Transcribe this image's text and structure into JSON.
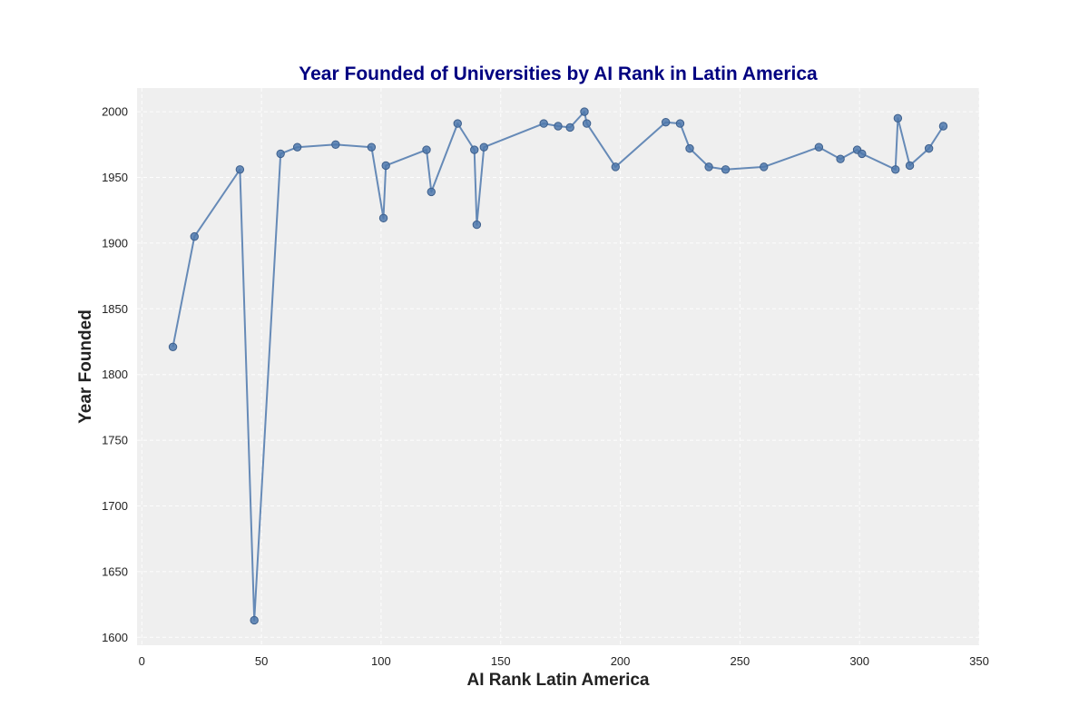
{
  "chart_data": {
    "type": "line",
    "title": "Year Founded of Universities by AI Rank in Latin America",
    "xlabel": "AI Rank Latin America",
    "ylabel": "Year Founded",
    "xlim": [
      -2,
      350
    ],
    "ylim": [
      1594,
      2018
    ],
    "xticks": [
      0,
      50,
      100,
      150,
      200,
      250,
      300,
      350
    ],
    "yticks": [
      1600,
      1650,
      1700,
      1750,
      1800,
      1850,
      1900,
      1950,
      2000
    ],
    "grid": true,
    "legend": "none",
    "colors": {
      "series": "#4d78ad",
      "title": "#000080",
      "plot_bg": "#efefef"
    },
    "series": [
      {
        "points": [
          [
            13,
            1821
          ],
          [
            22,
            1905
          ],
          [
            41,
            1956
          ],
          [
            47,
            1613
          ],
          [
            58,
            1968
          ],
          [
            65,
            1973
          ],
          [
            81,
            1975
          ],
          [
            96,
            1973
          ],
          [
            101,
            1919
          ],
          [
            102,
            1959
          ],
          [
            119,
            1971
          ],
          [
            121,
            1939
          ],
          [
            132,
            1991
          ],
          [
            139,
            1971
          ],
          [
            140,
            1914
          ],
          [
            143,
            1973
          ],
          [
            168,
            1991
          ],
          [
            174,
            1989
          ],
          [
            179,
            1988
          ],
          [
            185,
            2000
          ],
          [
            186,
            1991
          ],
          [
            198,
            1958
          ],
          [
            219,
            1992
          ],
          [
            225,
            1991
          ],
          [
            229,
            1972
          ],
          [
            237,
            1958
          ],
          [
            244,
            1956
          ],
          [
            260,
            1958
          ],
          [
            283,
            1973
          ],
          [
            292,
            1964
          ],
          [
            299,
            1971
          ],
          [
            301,
            1968
          ],
          [
            315,
            1956
          ],
          [
            316,
            1995
          ],
          [
            321,
            1959
          ],
          [
            329,
            1972
          ],
          [
            335,
            1989
          ]
        ]
      }
    ]
  }
}
